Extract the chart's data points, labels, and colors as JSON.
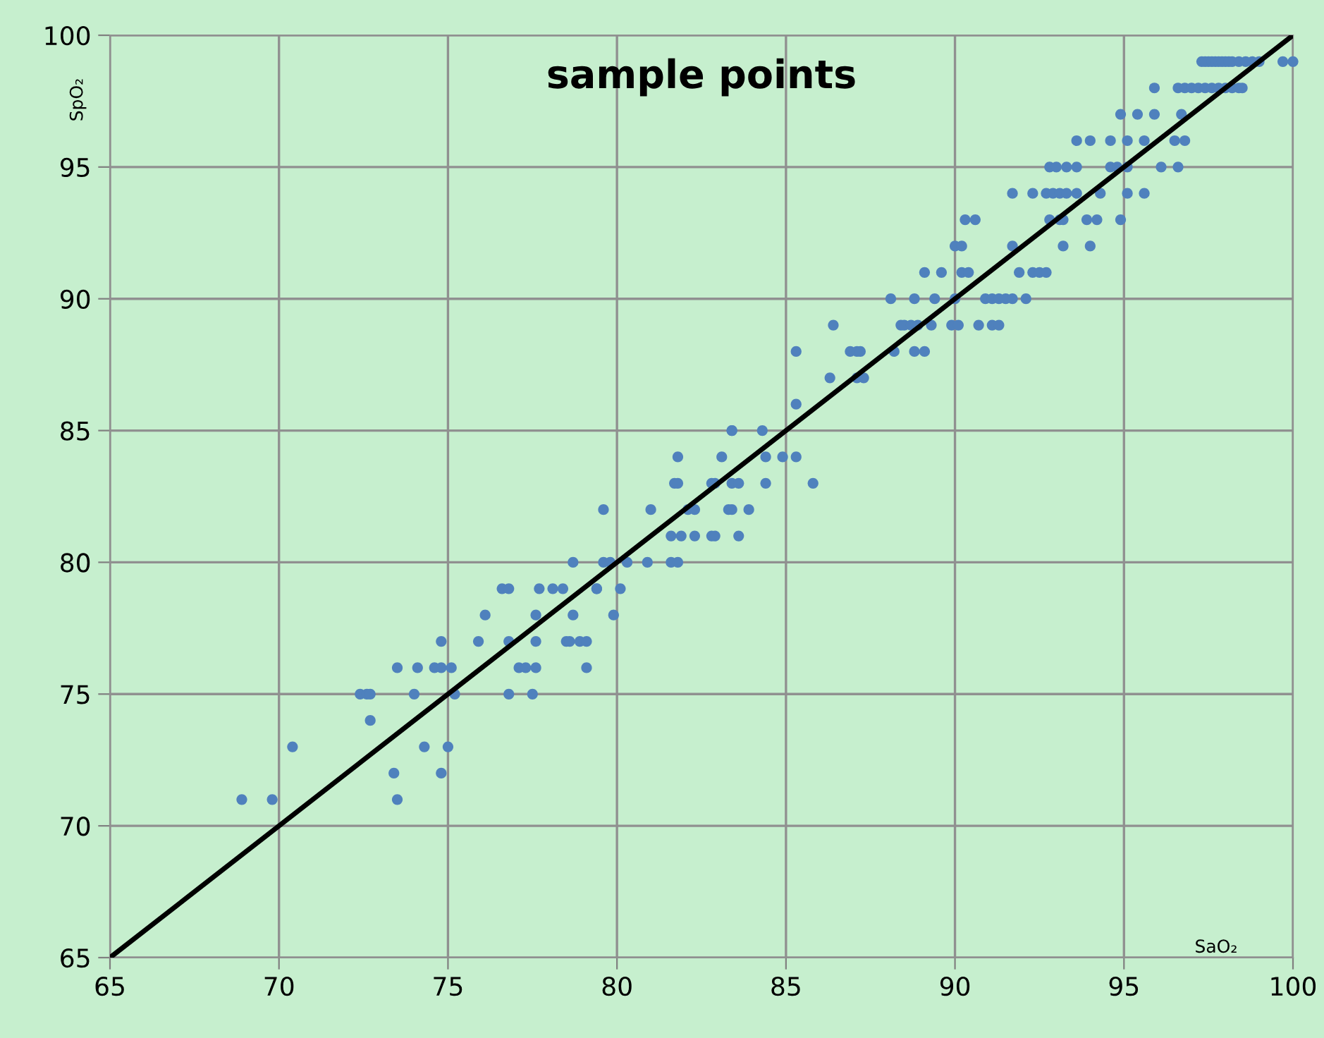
{
  "chart_data": {
    "type": "scatter",
    "title": "sample points",
    "xlabel": "SaO₂",
    "ylabel": "SpO₂",
    "xlim": [
      65,
      100
    ],
    "ylim": [
      65,
      100
    ],
    "xticks": [
      65,
      70,
      75,
      80,
      85,
      90,
      95,
      100
    ],
    "yticks": [
      65,
      70,
      75,
      80,
      85,
      90,
      95,
      100
    ],
    "grid": true,
    "marker": "circle",
    "legend": false,
    "series": [
      {
        "color": "#4f81bd",
        "x": [
          68.9,
          69.8,
          73.5,
          73.4,
          74.8,
          70.4,
          74.3,
          75.0,
          72.7,
          72.4,
          72.6,
          72.7,
          74.0,
          75.2,
          76.8,
          77.5,
          73.5,
          74.1,
          74.6,
          74.8,
          75.1,
          77.1,
          77.3,
          77.6,
          79.1,
          74.8,
          75.9,
          76.8,
          77.6,
          78.5,
          78.6,
          78.9,
          79.1,
          76.1,
          77.6,
          78.7,
          79.9,
          76.6,
          76.8,
          77.7,
          78.1,
          78.4,
          79.4,
          79.4,
          80.1,
          78.7,
          79.6,
          79.8,
          80.3,
          80.9,
          81.6,
          81.8,
          81.6,
          81.9,
          82.3,
          82.8,
          82.9,
          83.6,
          79.6,
          81.0,
          82.1,
          82.3,
          83.3,
          83.4,
          83.9,
          81.7,
          81.8,
          82.8,
          82.9,
          83.4,
          83.6,
          84.4,
          85.8,
          81.8,
          83.1,
          84.4,
          84.9,
          85.3,
          83.4,
          83.4,
          84.3,
          85.3,
          86.3,
          87.1,
          87.3,
          85.3,
          86.9,
          87.1,
          87.2,
          88.2,
          88.8,
          89.1,
          86.4,
          88.4,
          88.5,
          88.7,
          88.9,
          89.3,
          89.9,
          90.1,
          90.7,
          91.1,
          91.3,
          88.1,
          88.8,
          89.4,
          90.0,
          90.9,
          91.1,
          91.3,
          91.5,
          91.7,
          92.1,
          89.1,
          89.6,
          90.2,
          90.4,
          91.9,
          92.3,
          92.5,
          92.7,
          90.0,
          90.2,
          91.7,
          93.2,
          94.0,
          90.3,
          90.6,
          92.8,
          93.1,
          93.2,
          93.9,
          94.2,
          94.9,
          91.7,
          92.3,
          92.7,
          92.9,
          93.1,
          93.3,
          93.6,
          94.3,
          95.1,
          95.6,
          92.8,
          93.0,
          93.3,
          93.6,
          94.6,
          94.8,
          95.1,
          96.1,
          96.6,
          93.6,
          94.0,
          94.6,
          95.1,
          95.6,
          96.5,
          96.8,
          94.9,
          95.4,
          95.9,
          96.7,
          95.9,
          96.6,
          96.8,
          97.0,
          97.2,
          97.4,
          97.6,
          97.8,
          98.0,
          98.2,
          98.4,
          98.5,
          97.3,
          97.4,
          97.5,
          97.6,
          97.7,
          97.8,
          97.9,
          98.0,
          98.1,
          98.2,
          98.4,
          98.6,
          98.8,
          99.0,
          99.7,
          100
        ],
        "values": [
          71,
          71,
          71,
          72,
          72,
          73,
          73,
          73,
          74,
          75,
          75,
          75,
          75,
          75,
          75,
          75,
          76,
          76,
          76,
          76,
          76,
          76,
          76,
          76,
          76,
          77,
          77,
          77,
          77,
          77,
          77,
          77,
          77,
          78,
          78,
          78,
          78,
          79,
          79,
          79,
          79,
          79,
          79,
          79,
          79,
          80,
          80,
          80,
          80,
          80,
          80,
          80,
          81,
          81,
          81,
          81,
          81,
          81,
          82,
          82,
          82,
          82,
          82,
          82,
          82,
          83,
          83,
          83,
          83,
          83,
          83,
          83,
          83,
          84,
          84,
          84,
          84,
          84,
          85,
          85,
          85,
          86,
          87,
          87,
          87,
          88,
          88,
          88,
          88,
          88,
          88,
          88,
          89,
          89,
          89,
          89,
          89,
          89,
          89,
          89,
          89,
          89,
          89,
          90,
          90,
          90,
          90,
          90,
          90,
          90,
          90,
          90,
          90,
          91,
          91,
          91,
          91,
          91,
          91,
          91,
          91,
          92,
          92,
          92,
          92,
          92,
          93,
          93,
          93,
          93,
          93,
          93,
          93,
          93,
          94,
          94,
          94,
          94,
          94,
          94,
          94,
          94,
          94,
          94,
          95,
          95,
          95,
          95,
          95,
          95,
          95,
          95,
          95,
          96,
          96,
          96,
          96,
          96,
          96,
          96,
          97,
          97,
          97,
          97,
          98,
          98,
          98,
          98,
          98,
          98,
          98,
          98,
          98,
          98,
          98,
          98,
          99,
          99,
          99,
          99,
          99,
          99,
          99,
          99,
          99,
          99,
          99,
          99,
          99,
          99,
          99,
          99
        ]
      },
      {
        "type": "line",
        "color": "#000000",
        "marker": "none",
        "x": [
          65,
          100
        ],
        "values": [
          65,
          100
        ]
      }
    ]
  }
}
